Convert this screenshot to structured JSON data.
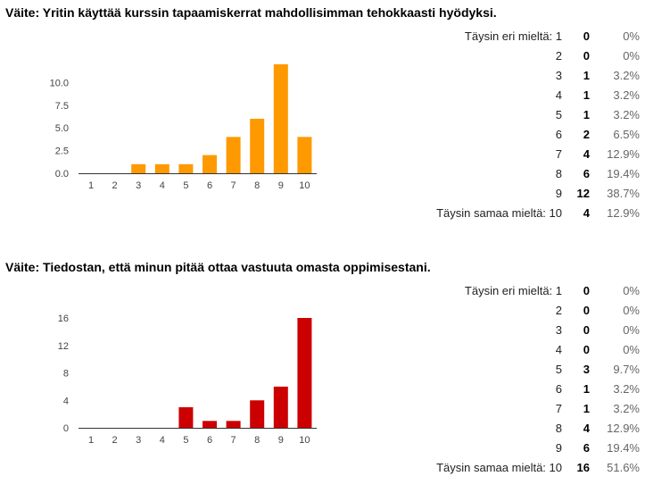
{
  "questions": [
    {
      "title": "Väite: Yritin käyttää kurssin tapaamiskerrat mahdollisimman tehokkaasti hyödyksi.",
      "rows": [
        {
          "label": "Täysin eri mieltä: 1",
          "count": "0",
          "pct": "0%"
        },
        {
          "label": "2",
          "count": "0",
          "pct": "0%"
        },
        {
          "label": "3",
          "count": "1",
          "pct": "3.2%"
        },
        {
          "label": "4",
          "count": "1",
          "pct": "3.2%"
        },
        {
          "label": "5",
          "count": "1",
          "pct": "3.2%"
        },
        {
          "label": "6",
          "count": "2",
          "pct": "6.5%"
        },
        {
          "label": "7",
          "count": "4",
          "pct": "12.9%"
        },
        {
          "label": "8",
          "count": "6",
          "pct": "19.4%"
        },
        {
          "label": "9",
          "count": "12",
          "pct": "38.7%"
        },
        {
          "label": "Täysin samaa mieltä: 10",
          "count": "4",
          "pct": "12.9%"
        }
      ]
    },
    {
      "title": "Väite: Tiedostan, että minun pitää ottaa vastuuta omasta oppimisestani.",
      "rows": [
        {
          "label": "Täysin eri mieltä: 1",
          "count": "0",
          "pct": "0%"
        },
        {
          "label": "2",
          "count": "0",
          "pct": "0%"
        },
        {
          "label": "3",
          "count": "0",
          "pct": "0%"
        },
        {
          "label": "4",
          "count": "0",
          "pct": "0%"
        },
        {
          "label": "5",
          "count": "3",
          "pct": "9.7%"
        },
        {
          "label": "6",
          "count": "1",
          "pct": "3.2%"
        },
        {
          "label": "7",
          "count": "1",
          "pct": "3.2%"
        },
        {
          "label": "8",
          "count": "4",
          "pct": "12.9%"
        },
        {
          "label": "9",
          "count": "6",
          "pct": "19.4%"
        },
        {
          "label": "Täysin samaa mieltä: 10",
          "count": "16",
          "pct": "51.6%"
        }
      ]
    }
  ],
  "chart_data": [
    {
      "type": "bar",
      "categories": [
        "1",
        "2",
        "3",
        "4",
        "5",
        "6",
        "7",
        "8",
        "9",
        "10"
      ],
      "values": [
        0,
        0,
        1,
        1,
        1,
        2,
        4,
        6,
        12,
        4
      ],
      "yticks": [
        "0.0",
        "2.5",
        "5.0",
        "7.5",
        "10.0"
      ],
      "ytick_values": [
        0,
        2.5,
        5,
        7.5,
        10
      ],
      "ylim": [
        0,
        12
      ],
      "color": "#ff9900",
      "title": "",
      "xlabel": "",
      "ylabel": ""
    },
    {
      "type": "bar",
      "categories": [
        "1",
        "2",
        "3",
        "4",
        "5",
        "6",
        "7",
        "8",
        "9",
        "10"
      ],
      "values": [
        0,
        0,
        0,
        0,
        3,
        1,
        1,
        4,
        6,
        16
      ],
      "yticks": [
        "0",
        "4",
        "8",
        "12",
        "16"
      ],
      "ytick_values": [
        0,
        4,
        8,
        12,
        16
      ],
      "ylim": [
        0,
        16
      ],
      "color": "#cc0000",
      "title": "",
      "xlabel": "",
      "ylabel": ""
    }
  ]
}
